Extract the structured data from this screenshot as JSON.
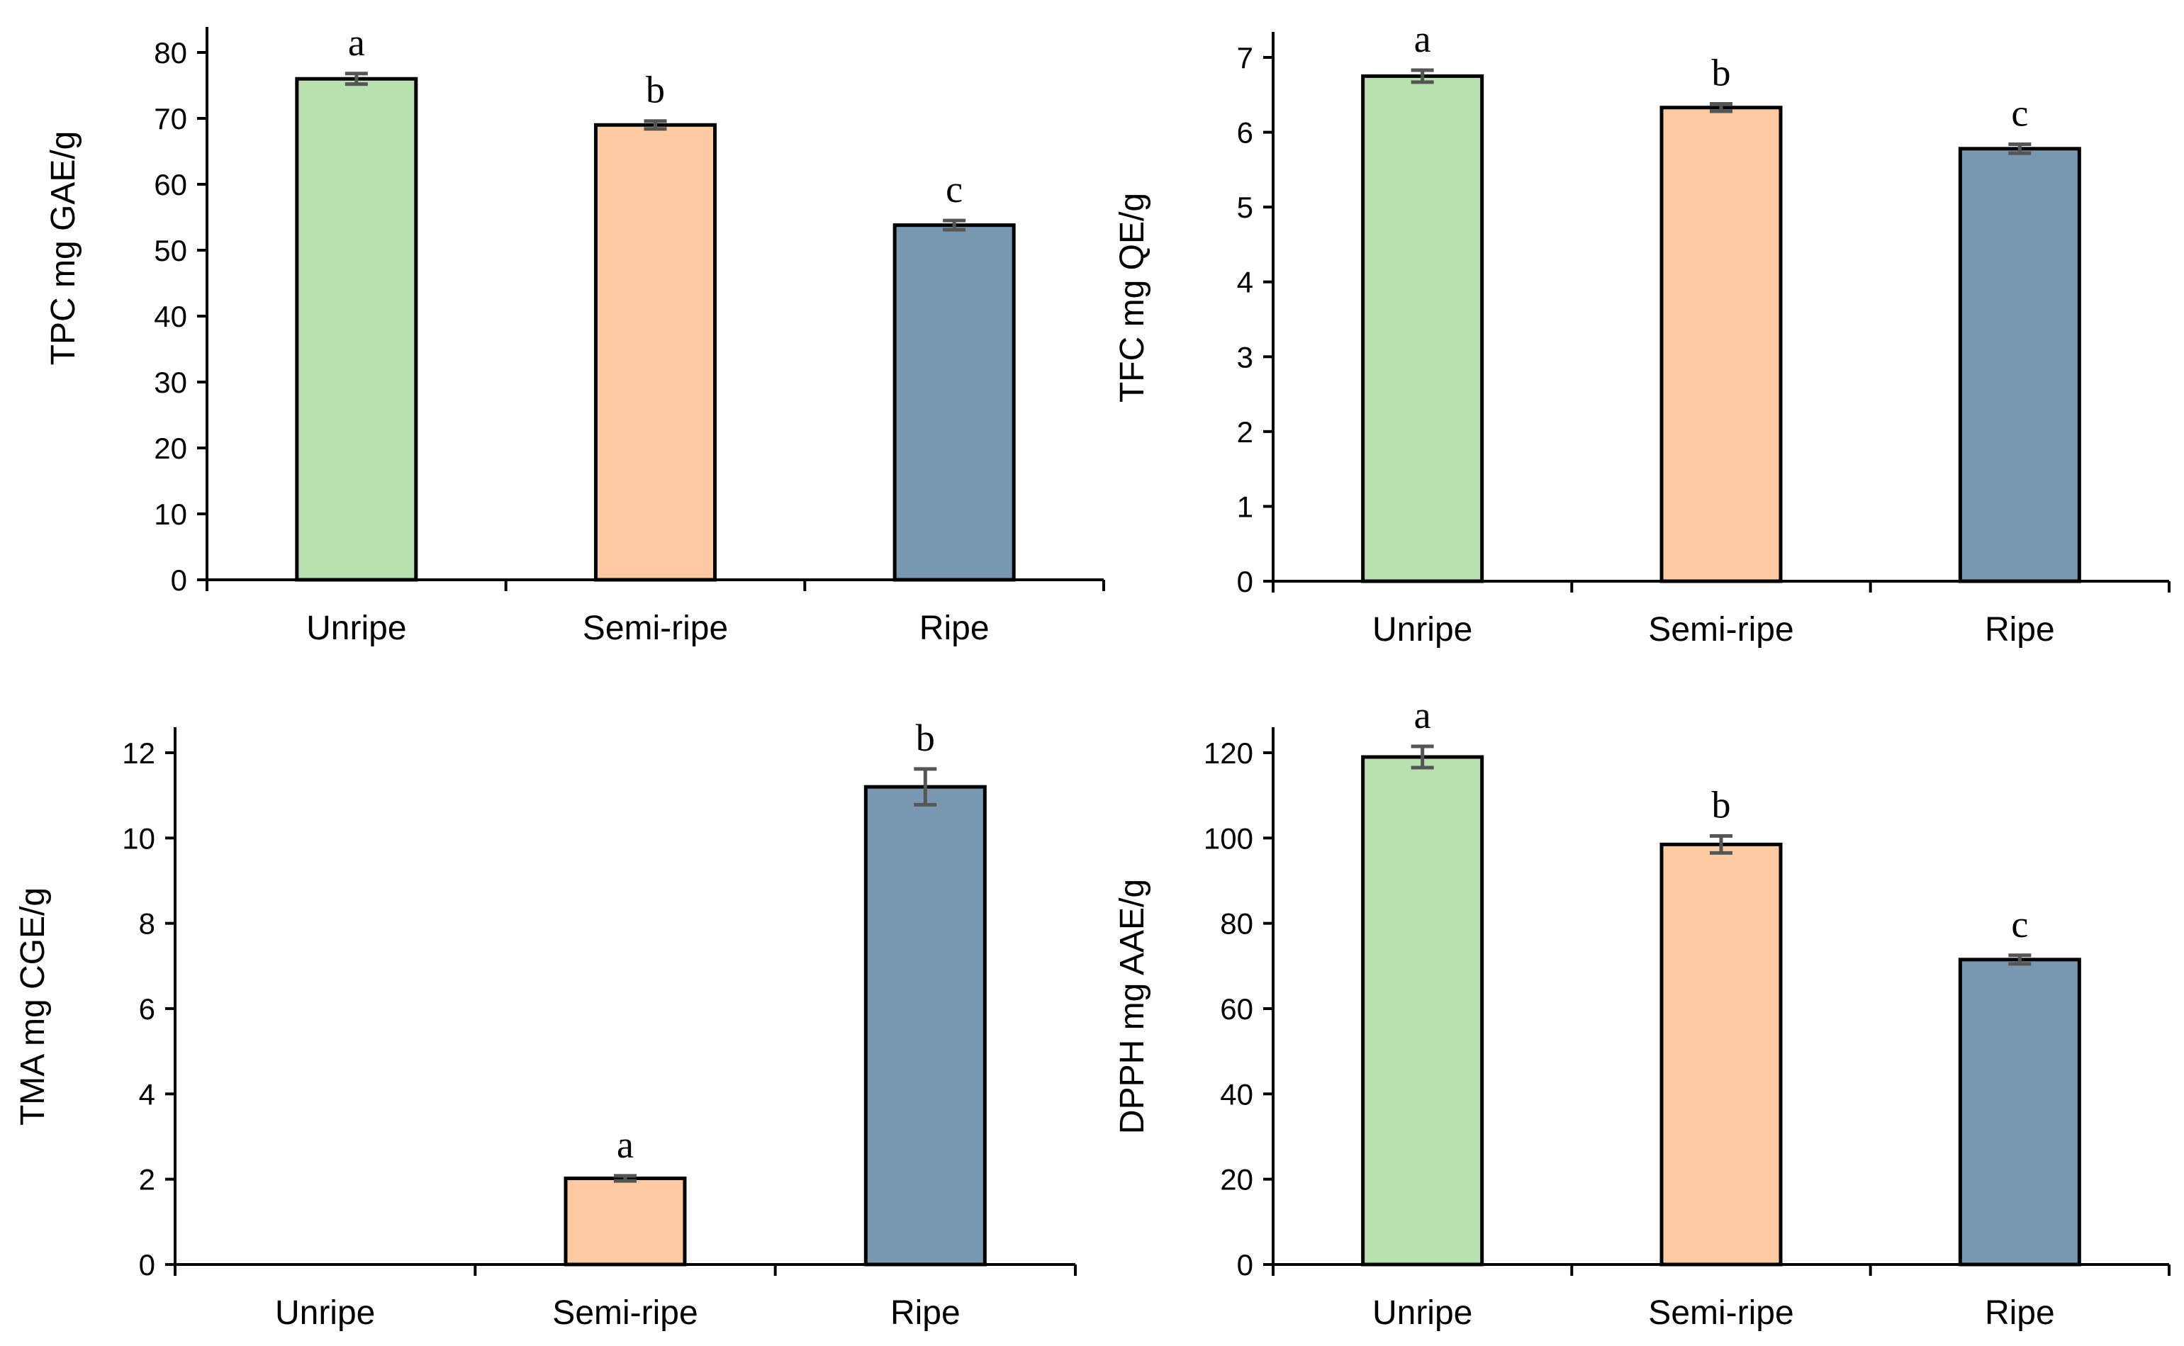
{
  "colors": {
    "unripe": "#b9e0b0",
    "semi_ripe": "#fdcaa4",
    "ripe": "#7a97b2",
    "error_bar": "#555555",
    "axis": "#000000"
  },
  "chart_data": [
    {
      "type": "bar",
      "title": "",
      "xlabel": "",
      "ylabel": "TPC mg GAE/g",
      "categories": [
        "Unripe",
        "Semi-ripe",
        "Ripe"
      ],
      "values": [
        76.0,
        69.0,
        53.8
      ],
      "errors": [
        0.8,
        0.6,
        0.7
      ],
      "letters": [
        "a",
        "b",
        "c"
      ],
      "ylim": [
        0,
        80
      ],
      "yticks": [
        0,
        10,
        20,
        30,
        40,
        50,
        60,
        70,
        80
      ],
      "grid": false,
      "legend": "none"
    },
    {
      "type": "bar",
      "title": "",
      "xlabel": "",
      "ylabel": "TFC mg QE/g",
      "categories": [
        "Unripe",
        "Semi-ripe",
        "Ripe"
      ],
      "values": [
        6.75,
        6.33,
        5.78
      ],
      "errors": [
        0.08,
        0.05,
        0.06
      ],
      "letters": [
        "a",
        "b",
        "c"
      ],
      "ylim": [
        0,
        7
      ],
      "yticks": [
        0,
        1,
        2,
        3,
        4,
        5,
        6,
        7
      ],
      "grid": false,
      "legend": "none"
    },
    {
      "type": "bar",
      "title": "",
      "xlabel": "",
      "ylabel": "TMA mg CGE/g",
      "categories": [
        "Unripe",
        "Semi-ripe",
        "Ripe"
      ],
      "values": [
        null,
        2.02,
        11.2
      ],
      "errors": [
        null,
        0.06,
        0.42
      ],
      "letters": [
        "",
        "a",
        "b"
      ],
      "ylim": [
        0,
        12
      ],
      "yticks": [
        0,
        2,
        4,
        6,
        8,
        10,
        12
      ],
      "grid": false,
      "legend": "none"
    },
    {
      "type": "bar",
      "title": "",
      "xlabel": "",
      "ylabel": "DPPH mg AAE/g",
      "categories": [
        "Unripe",
        "Semi-ripe",
        "Ripe"
      ],
      "values": [
        119.0,
        98.5,
        71.5
      ],
      "errors": [
        2.5,
        2.0,
        1.0
      ],
      "letters": [
        "a",
        "b",
        "c"
      ],
      "ylim": [
        0,
        120
      ],
      "yticks": [
        0,
        20,
        40,
        60,
        80,
        100,
        120
      ],
      "grid": false,
      "legend": "none"
    }
  ]
}
